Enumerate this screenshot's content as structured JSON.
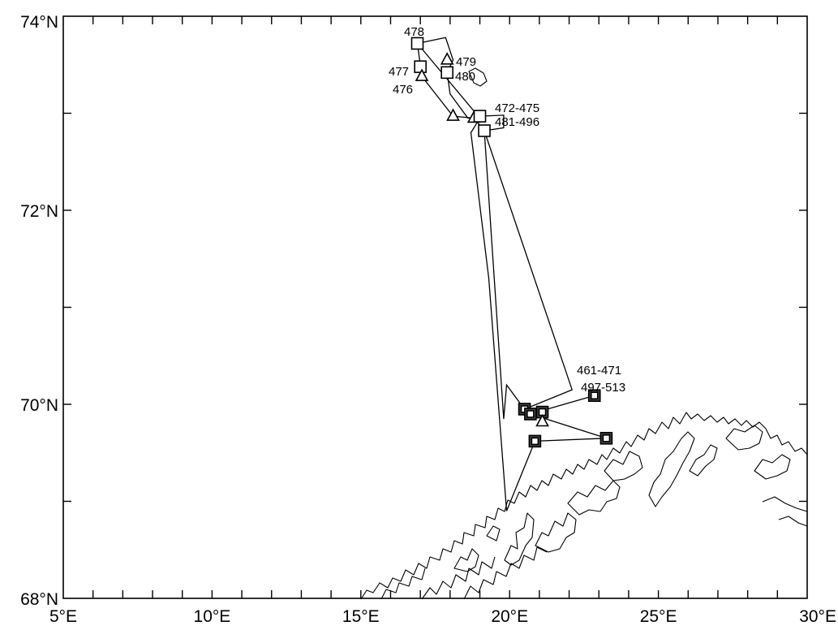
{
  "map": {
    "x_axis": {
      "ticks": [
        {
          "value": 5,
          "label": "5°E"
        },
        {
          "value": 10,
          "label": "10°E"
        },
        {
          "value": 15,
          "label": "15°E"
        },
        {
          "value": 20,
          "label": "20°E"
        },
        {
          "value": 25,
          "label": "25°E"
        },
        {
          "value": 30,
          "label": "30°E"
        }
      ],
      "range": [
        5,
        30
      ]
    },
    "y_axis": {
      "ticks": [
        {
          "value": 68,
          "label": "68°N"
        },
        {
          "value": 70,
          "label": "70°N"
        },
        {
          "value": 72,
          "label": "72°N"
        },
        {
          "value": 74,
          "label": "74°N"
        }
      ],
      "range": [
        68,
        74
      ]
    },
    "station_labels": {
      "s478": "478",
      "s477": "477",
      "s476": "476",
      "s479": "479",
      "s480": "480",
      "s472_475": "472-475",
      "s481_496": "481-496",
      "s461_471": "461-471",
      "s497_513": "497-513"
    },
    "stations": [
      {
        "lon": 16.9,
        "lat": 73.72,
        "marker": "square"
      },
      {
        "lon": 17.0,
        "lat": 73.48,
        "marker": "square"
      },
      {
        "lon": 17.05,
        "lat": 73.38,
        "marker": "triangle"
      },
      {
        "lon": 17.9,
        "lat": 73.55,
        "marker": "triangle"
      },
      {
        "lon": 17.9,
        "lat": 73.42,
        "marker": "square"
      },
      {
        "lon": 18.1,
        "lat": 72.97,
        "marker": "triangle"
      },
      {
        "lon": 18.8,
        "lat": 72.95,
        "marker": "triangle"
      },
      {
        "lon": 19.0,
        "lat": 72.97,
        "marker": "square"
      },
      {
        "lon": 19.15,
        "lat": 72.82,
        "marker": "square"
      },
      {
        "lon": 20.5,
        "lat": 69.95,
        "marker": "square"
      },
      {
        "lon": 20.7,
        "lat": 69.9,
        "marker": "square"
      },
      {
        "lon": 21.1,
        "lat": 69.92,
        "marker": "square"
      },
      {
        "lon": 21.1,
        "lat": 69.82,
        "marker": "triangle"
      },
      {
        "lon": 22.85,
        "lat": 70.09,
        "marker": "square"
      },
      {
        "lon": 23.25,
        "lat": 69.65,
        "marker": "square"
      },
      {
        "lon": 20.85,
        "lat": 69.62,
        "marker": "square"
      }
    ],
    "track": [
      [
        16.9,
        73.72
      ],
      [
        17.85,
        73.78
      ],
      [
        18.1,
        73.55
      ],
      [
        17.9,
        73.42
      ],
      [
        18.0,
        73.2
      ],
      [
        18.6,
        72.95
      ],
      [
        19.0,
        72.97
      ],
      [
        19.8,
        72.98
      ],
      [
        19.8,
        72.85
      ],
      [
        19.15,
        72.82
      ],
      [
        22.1,
        70.15
      ],
      [
        20.5,
        69.95
      ],
      [
        21.1,
        69.92
      ],
      [
        20.7,
        69.9
      ],
      [
        22.85,
        70.09
      ],
      [
        20.7,
        69.9
      ],
      [
        23.25,
        69.65
      ],
      [
        20.85,
        69.62
      ],
      [
        19.9,
        68.9
      ],
      [
        19.3,
        71.3
      ],
      [
        18.7,
        72.8
      ],
      [
        19.0,
        72.95
      ],
      [
        16.9,
        73.72
      ],
      [
        17.05,
        73.38
      ],
      [
        18.1,
        72.97
      ],
      [
        18.8,
        72.95
      ],
      [
        19.15,
        72.82
      ],
      [
        19.8,
        69.85
      ],
      [
        19.9,
        70.2
      ],
      [
        20.5,
        69.95
      ]
    ]
  }
}
